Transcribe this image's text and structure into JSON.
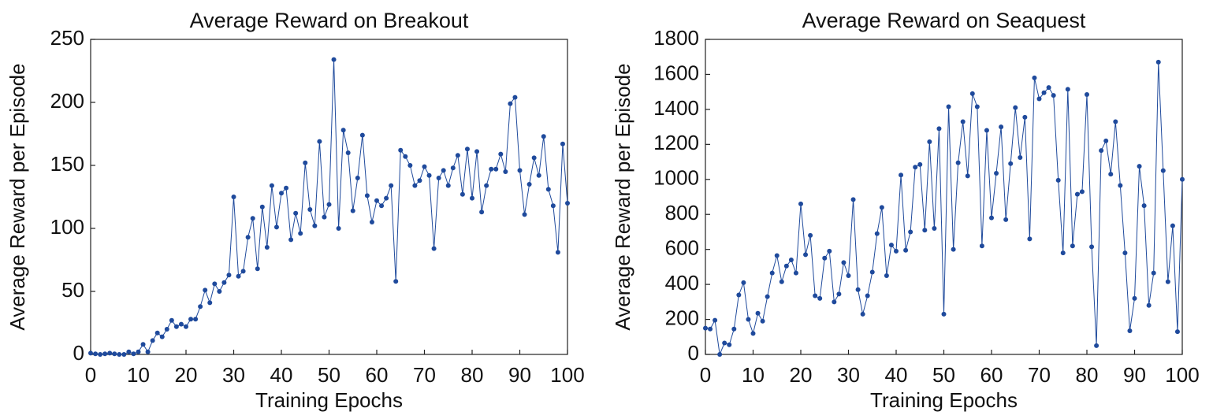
{
  "chart_data": [
    {
      "type": "line",
      "title": "Average Reward on Breakout",
      "xlabel": "Training Epochs",
      "ylabel": "Average Reward per Episode",
      "x": [
        0,
        1,
        2,
        3,
        4,
        5,
        6,
        7,
        8,
        9,
        10,
        11,
        12,
        13,
        14,
        15,
        16,
        17,
        18,
        19,
        20,
        21,
        22,
        23,
        24,
        25,
        26,
        27,
        28,
        29,
        30,
        31,
        32,
        33,
        34,
        35,
        36,
        37,
        38,
        39,
        40,
        41,
        42,
        43,
        44,
        45,
        46,
        47,
        48,
        49,
        50,
        51,
        52,
        53,
        54,
        55,
        56,
        57,
        58,
        59,
        60,
        61,
        62,
        63,
        64,
        65,
        66,
        67,
        68,
        69,
        70,
        71,
        72,
        73,
        74,
        75,
        76,
        77,
        78,
        79,
        80,
        81,
        82,
        83,
        84,
        85,
        86,
        87,
        88,
        89,
        90,
        91,
        92,
        93,
        94,
        95,
        96,
        97,
        98,
        99,
        100
      ],
      "series": [
        {
          "name": "Breakout",
          "color": "#1f4a9c",
          "values": [
            1,
            0.5,
            0,
            0.5,
            1,
            0.5,
            0,
            0,
            2,
            0.5,
            2,
            8,
            2,
            11,
            17,
            14,
            20,
            27,
            22,
            24,
            22,
            28,
            28,
            38,
            51,
            41,
            56,
            50,
            57,
            63,
            125,
            62,
            66,
            93,
            108,
            68,
            117,
            85,
            134,
            101,
            128,
            132,
            91,
            112,
            96,
            152,
            115,
            102,
            169,
            109,
            119,
            234,
            100,
            178,
            160,
            114,
            140,
            174,
            126,
            105,
            122,
            118,
            124,
            134,
            58,
            162,
            157,
            150,
            134,
            138,
            149,
            142,
            84,
            140,
            146,
            134,
            148,
            158,
            127,
            163,
            124,
            161,
            113,
            134,
            147,
            147,
            159,
            145,
            199,
            204,
            146,
            111,
            135,
            156,
            142,
            173,
            131,
            118,
            81,
            167,
            120
          ]
        }
      ],
      "xlim": [
        0,
        100
      ],
      "xticks": [
        0,
        10,
        20,
        30,
        40,
        50,
        60,
        70,
        80,
        90,
        100
      ],
      "ylim": [
        0,
        250
      ],
      "yticks": [
        0,
        50,
        100,
        150,
        200,
        250
      ]
    },
    {
      "type": "line",
      "title": "Average Reward on Seaquest",
      "xlabel": "Training Epochs",
      "ylabel": "Average Reward per Episode",
      "x": [
        0,
        1,
        2,
        3,
        4,
        5,
        6,
        7,
        8,
        9,
        10,
        11,
        12,
        13,
        14,
        15,
        16,
        17,
        18,
        19,
        20,
        21,
        22,
        23,
        24,
        25,
        26,
        27,
        28,
        29,
        30,
        31,
        32,
        33,
        34,
        35,
        36,
        37,
        38,
        39,
        40,
        41,
        42,
        43,
        44,
        45,
        46,
        47,
        48,
        49,
        50,
        51,
        52,
        53,
        54,
        55,
        56,
        57,
        58,
        59,
        60,
        61,
        62,
        63,
        64,
        65,
        66,
        67,
        68,
        69,
        70,
        71,
        72,
        73,
        74,
        75,
        76,
        77,
        78,
        79,
        80,
        81,
        82,
        83,
        84,
        85,
        86,
        87,
        88,
        89,
        90,
        91,
        92,
        93,
        94,
        95,
        96,
        97,
        98,
        99,
        100
      ],
      "series": [
        {
          "name": "Seaquest",
          "color": "#1f4a9c",
          "values": [
            150,
            145,
            195,
            0,
            65,
            55,
            145,
            340,
            410,
            200,
            120,
            235,
            190,
            330,
            465,
            565,
            415,
            505,
            540,
            465,
            860,
            570,
            680,
            335,
            320,
            550,
            590,
            300,
            345,
            525,
            450,
            885,
            370,
            230,
            335,
            470,
            690,
            840,
            450,
            625,
            590,
            1025,
            595,
            700,
            1070,
            1085,
            710,
            1215,
            720,
            1290,
            230,
            1415,
            600,
            1095,
            1330,
            1020,
            1490,
            1415,
            620,
            1280,
            780,
            1035,
            1300,
            770,
            1090,
            1410,
            1125,
            1355,
            660,
            1580,
            1460,
            1495,
            1525,
            1480,
            995,
            580,
            1515,
            620,
            915,
            930,
            1485,
            615,
            50,
            1165,
            1220,
            1030,
            1330,
            965,
            580,
            135,
            320,
            1075,
            850,
            280,
            465,
            1670,
            1050,
            415,
            735,
            130,
            1000
          ]
        }
      ],
      "xlim": [
        0,
        100
      ],
      "xticks": [
        0,
        10,
        20,
        30,
        40,
        50,
        60,
        70,
        80,
        90,
        100
      ],
      "ylim": [
        0,
        1800
      ],
      "yticks": [
        0,
        200,
        400,
        600,
        800,
        1000,
        1200,
        1400,
        1600,
        1800
      ]
    }
  ]
}
